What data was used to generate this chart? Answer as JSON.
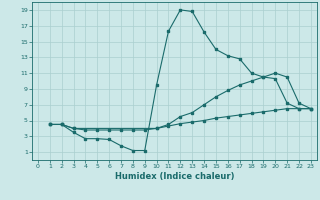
{
  "xlabel": "Humidex (Indice chaleur)",
  "bg_color": "#cce8e8",
  "grid_color": "#aacfcf",
  "line_color": "#1a6b6b",
  "xlim": [
    -0.5,
    23.5
  ],
  "ylim": [
    0,
    20
  ],
  "xticks": [
    0,
    1,
    2,
    3,
    4,
    5,
    6,
    7,
    8,
    9,
    10,
    11,
    12,
    13,
    14,
    15,
    16,
    17,
    18,
    19,
    20,
    21,
    22,
    23
  ],
  "yticks": [
    1,
    3,
    5,
    7,
    9,
    11,
    13,
    15,
    17,
    19
  ],
  "curve1_x": [
    1,
    2,
    3,
    4,
    5,
    6,
    7,
    8,
    9,
    10,
    11,
    12,
    13,
    14,
    15,
    16,
    17,
    18,
    19,
    20,
    21,
    22,
    23
  ],
  "curve1_y": [
    4.5,
    4.5,
    3.5,
    2.7,
    2.7,
    2.6,
    1.8,
    1.2,
    1.2,
    9.5,
    16.3,
    19.0,
    18.8,
    16.2,
    14.0,
    13.2,
    12.8,
    11.0,
    10.5,
    10.3,
    7.2,
    6.5,
    6.5
  ],
  "curve2_x": [
    1,
    2,
    3,
    10,
    11,
    12,
    13,
    14,
    15,
    16,
    17,
    18,
    19,
    20,
    21,
    22,
    23
  ],
  "curve2_y": [
    4.5,
    4.5,
    4.0,
    4.0,
    4.5,
    5.5,
    6.0,
    7.0,
    8.0,
    8.8,
    9.5,
    10.0,
    10.5,
    11.0,
    10.5,
    7.2,
    6.5
  ],
  "curve3_x": [
    1,
    2,
    3,
    4,
    5,
    6,
    7,
    8,
    9,
    10,
    11,
    12,
    13,
    14,
    15,
    16,
    17,
    18,
    19,
    20,
    21,
    22,
    23
  ],
  "curve3_y": [
    4.5,
    4.5,
    4.0,
    3.8,
    3.8,
    3.8,
    3.8,
    3.8,
    3.8,
    4.0,
    4.3,
    4.6,
    4.8,
    5.0,
    5.3,
    5.5,
    5.7,
    5.9,
    6.1,
    6.3,
    6.5,
    6.5,
    6.5
  ]
}
